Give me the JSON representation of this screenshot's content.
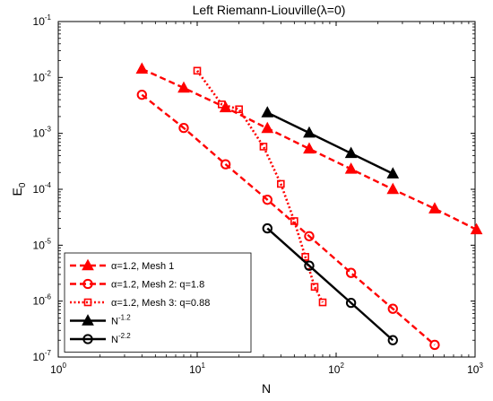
{
  "chart_data": {
    "type": "line",
    "title": "Left Riemann-Liouville(λ=0)",
    "xlabel": "N",
    "ylabel": "E",
    "ylabel_sub": "0",
    "xscale": "log",
    "yscale": "log",
    "xlim": [
      1,
      1000
    ],
    "ylim": [
      1e-07,
      0.1
    ],
    "grid": false,
    "legend_position": "bottom-left",
    "x_ticks": [
      {
        "base": "10",
        "exp": "0",
        "value": 1
      },
      {
        "base": "10",
        "exp": "1",
        "value": 10
      },
      {
        "base": "10",
        "exp": "2",
        "value": 100
      },
      {
        "base": "10",
        "exp": "3",
        "value": 1000
      }
    ],
    "y_ticks": [
      {
        "base": "10",
        "exp": "-7",
        "value": 1e-07
      },
      {
        "base": "10",
        "exp": "-6",
        "value": 1e-06
      },
      {
        "base": "10",
        "exp": "-5",
        "value": 1e-05
      },
      {
        "base": "10",
        "exp": "-4",
        "value": 0.0001
      },
      {
        "base": "10",
        "exp": "-3",
        "value": 0.001
      },
      {
        "base": "10",
        "exp": "-2",
        "value": 0.01
      },
      {
        "base": "10",
        "exp": "-1",
        "value": 0.1
      }
    ],
    "series": [
      {
        "name": "α=1.2, Mesh 1",
        "color": "#ff0000",
        "line": "dashed",
        "marker": "triangle",
        "x": [
          4,
          8,
          16,
          32,
          64,
          128,
          256,
          512,
          1024
        ],
        "y": [
          0.0142,
          0.0065,
          0.0029,
          0.00123,
          0.00053,
          0.00023,
          0.0001,
          4.5e-05,
          1.9e-05
        ]
      },
      {
        "name": "α=1.2, Mesh 2: q=1.8",
        "color": "#ff0000",
        "line": "dashed",
        "marker": "circle",
        "x": [
          4,
          8,
          16,
          32,
          64,
          128,
          256,
          512
        ],
        "y": [
          0.0049,
          0.00125,
          0.00028,
          6.5e-05,
          1.45e-05,
          3.2e-06,
          7.3e-07,
          1.65e-07
        ]
      },
      {
        "name": "α=1.2, Mesh 3: q=0.88",
        "color": "#ff0000",
        "line": "dotted",
        "marker": "square",
        "x": [
          10,
          15,
          20,
          30,
          40,
          50,
          60,
          70,
          80
        ],
        "y": [
          0.0132,
          0.0033,
          0.0027,
          0.00058,
          0.000125,
          2.7e-05,
          6.2e-06,
          1.8e-06,
          9.5e-07
        ]
      },
      {
        "name": "N",
        "name_sup": "-1.2",
        "color": "#000000",
        "line": "solid",
        "marker": "triangle",
        "x": [
          32,
          64,
          128,
          256
        ],
        "y": [
          0.00235,
          0.00102,
          0.00044,
          0.00019
        ]
      },
      {
        "name": "N",
        "name_sup": "-2.2",
        "color": "#000000",
        "line": "solid",
        "marker": "circle",
        "x": [
          32,
          64,
          128,
          256
        ],
        "y": [
          2e-05,
          4.3e-06,
          9.3e-07,
          2e-07
        ]
      }
    ]
  }
}
